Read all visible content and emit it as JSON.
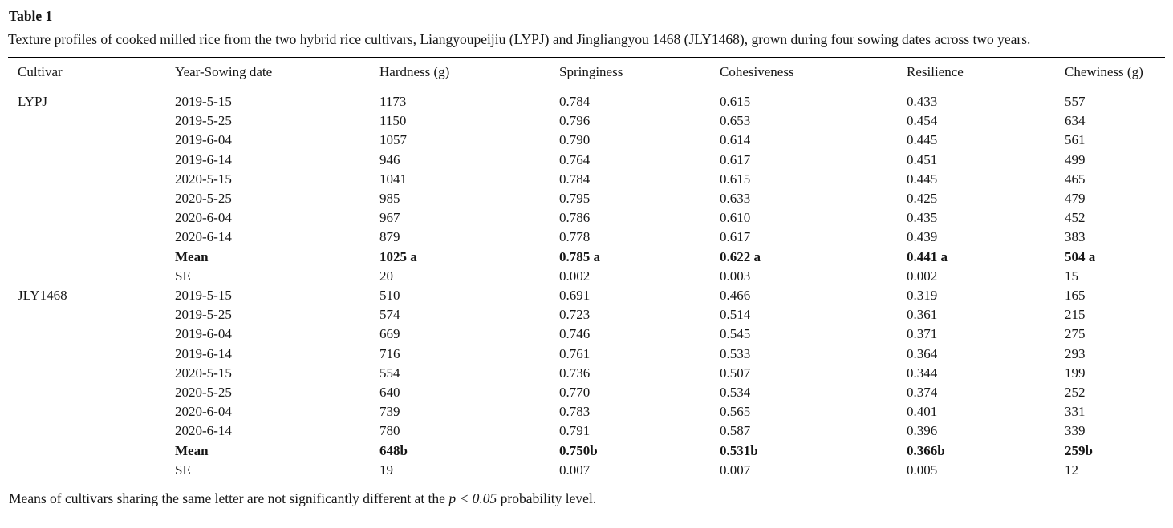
{
  "table": {
    "title": "Table 1",
    "caption": "Texture profiles of cooked milled rice from the two hybrid rice cultivars, Liangyoupeijiu (LYPJ) and Jingliangyou 1468 (JLY1468), grown during four sowing dates across two years.",
    "columns": [
      "Cultivar",
      "Year-Sowing date",
      "Hardness (g)",
      "Springiness",
      "Cohesiveness",
      "Resilience",
      "Chewiness (g)"
    ],
    "rows": [
      {
        "bold": false,
        "cells": [
          "LYPJ",
          "2019-5-15",
          "1173",
          "0.784",
          "0.615",
          "0.433",
          "557"
        ]
      },
      {
        "bold": false,
        "cells": [
          "",
          "2019-5-25",
          "1150",
          "0.796",
          "0.653",
          "0.454",
          "634"
        ]
      },
      {
        "bold": false,
        "cells": [
          "",
          "2019-6-04",
          "1057",
          "0.790",
          "0.614",
          "0.445",
          "561"
        ]
      },
      {
        "bold": false,
        "cells": [
          "",
          "2019-6-14",
          "946",
          "0.764",
          "0.617",
          "0.451",
          "499"
        ]
      },
      {
        "bold": false,
        "cells": [
          "",
          "2020-5-15",
          "1041",
          "0.784",
          "0.615",
          "0.445",
          "465"
        ]
      },
      {
        "bold": false,
        "cells": [
          "",
          "2020-5-25",
          "985",
          "0.795",
          "0.633",
          "0.425",
          "479"
        ]
      },
      {
        "bold": false,
        "cells": [
          "",
          "2020-6-04",
          "967",
          "0.786",
          "0.610",
          "0.435",
          "452"
        ]
      },
      {
        "bold": false,
        "cells": [
          "",
          "2020-6-14",
          "879",
          "0.778",
          "0.617",
          "0.439",
          "383"
        ]
      },
      {
        "bold": true,
        "cells": [
          "",
          "Mean",
          "1025 a",
          "0.785 a",
          "0.622 a",
          "0.441 a",
          "504 a"
        ]
      },
      {
        "bold": false,
        "cells": [
          "",
          "SE",
          "20",
          "0.002",
          "0.003",
          "0.002",
          "15"
        ]
      },
      {
        "bold": false,
        "cells": [
          "JLY1468",
          "2019-5-15",
          "510",
          "0.691",
          "0.466",
          "0.319",
          "165"
        ]
      },
      {
        "bold": false,
        "cells": [
          "",
          "2019-5-25",
          "574",
          "0.723",
          "0.514",
          "0.361",
          "215"
        ]
      },
      {
        "bold": false,
        "cells": [
          "",
          "2019-6-04",
          "669",
          "0.746",
          "0.545",
          "0.371",
          "275"
        ]
      },
      {
        "bold": false,
        "cells": [
          "",
          "2019-6-14",
          "716",
          "0.761",
          "0.533",
          "0.364",
          "293"
        ]
      },
      {
        "bold": false,
        "cells": [
          "",
          "2020-5-15",
          "554",
          "0.736",
          "0.507",
          "0.344",
          "199"
        ]
      },
      {
        "bold": false,
        "cells": [
          "",
          "2020-5-25",
          "640",
          "0.770",
          "0.534",
          "0.374",
          "252"
        ]
      },
      {
        "bold": false,
        "cells": [
          "",
          "2020-6-04",
          "739",
          "0.783",
          "0.565",
          "0.401",
          "331"
        ]
      },
      {
        "bold": false,
        "cells": [
          "",
          "2020-6-14",
          "780",
          "0.791",
          "0.587",
          "0.396",
          "339"
        ]
      },
      {
        "bold": true,
        "cells": [
          "",
          "Mean",
          "648b",
          "0.750b",
          "0.531b",
          "0.366b",
          "259b"
        ]
      },
      {
        "bold": false,
        "cells": [
          "",
          "SE",
          "19",
          "0.007",
          "0.007",
          "0.005",
          "12"
        ]
      }
    ],
    "footnote": {
      "prefix": "Means of cultivars sharing the same letter are not significantly different at the ",
      "italic": "p < 0.05",
      "suffix": " probability level."
    }
  }
}
